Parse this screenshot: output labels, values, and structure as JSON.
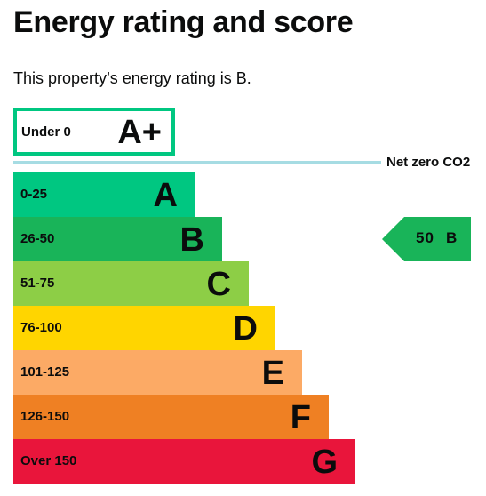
{
  "header": {
    "title": "Energy rating and score"
  },
  "intro": {
    "text": "This property’s energy rating is B."
  },
  "net_zero": {
    "range": "Under 0",
    "letter": "A+",
    "label": "Net zero CO2",
    "border_color": "#00c781",
    "line_color": "#a6dce3"
  },
  "bands": [
    {
      "range": "0-25",
      "letter": "A",
      "color": "#00c781"
    },
    {
      "range": "26-50",
      "letter": "B",
      "color": "#19b459"
    },
    {
      "range": "51-75",
      "letter": "C",
      "color": "#8dce46"
    },
    {
      "range": "76-100",
      "letter": "D",
      "color": "#ffd500"
    },
    {
      "range": "101-125",
      "letter": "E",
      "color": "#fcaa65"
    },
    {
      "range": "126-150",
      "letter": "F",
      "color": "#ef8023"
    },
    {
      "range": "Over 150",
      "letter": "G",
      "color": "#e9153b"
    }
  ],
  "current_rating": {
    "score": "50",
    "letter": "B",
    "color": "#19b459"
  }
}
